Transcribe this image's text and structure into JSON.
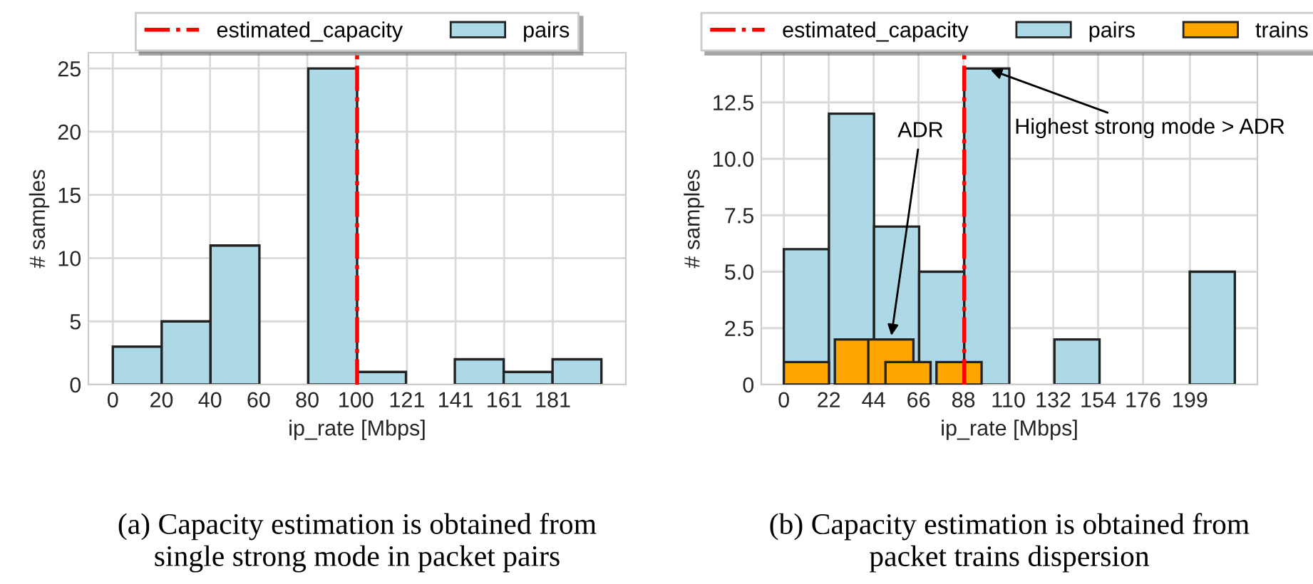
{
  "chart_data": [
    {
      "type": "histogram",
      "xlabel": "ip_rate [Mbps]",
      "ylabel": "# samples",
      "bins": [
        0,
        20.1,
        40.2,
        60.3,
        80.4,
        100.5,
        120.6,
        140.7,
        160.8,
        180.9,
        201
      ],
      "series": [
        {
          "name": "pairs",
          "color": "#add8e6",
          "values": [
            3,
            5,
            11,
            0,
            25,
            1,
            0,
            2,
            1,
            2
          ]
        }
      ],
      "ref_lines": [
        {
          "axis": "x",
          "value": 100.5,
          "label": "estimated_capacity",
          "color": "#ff0000",
          "line_style": "dashdot"
        }
      ],
      "xlim": [
        -10.05,
        211.05
      ],
      "ylim": [
        0,
        26.25
      ],
      "xticks": [
        0,
        20,
        40,
        60,
        80,
        100,
        121,
        141,
        161,
        181
      ],
      "yticks": [
        0,
        5,
        10,
        15,
        20,
        25
      ],
      "annotations": [
        "(a) Capacity estimation is obtained from\nsingle strong mode in packet pairs"
      ],
      "grid": true,
      "legend": "top"
    },
    {
      "type": "histogram",
      "xlabel": "ip_rate [Mbps]",
      "ylabel": "# samples",
      "bins": [
        0,
        22.1,
        44.2,
        66.3,
        88.4,
        110.5,
        132.6,
        154.7,
        176.8,
        198.9,
        221
      ],
      "series": [
        {
          "name": "pairs",
          "color": "#add8e6",
          "values": [
            6,
            12,
            7,
            5,
            14,
            0,
            2,
            0,
            0,
            5
          ]
        },
        {
          "name": "trains",
          "type": "bar",
          "color": "#ffa500",
          "x": [
            11.05,
            36.05,
            52.45,
            60.85,
            85.85
          ],
          "values": [
            1,
            2,
            2,
            1,
            1
          ]
        }
      ],
      "ref_lines": [
        {
          "axis": "x",
          "value": 88.4,
          "label": "estimated_capacity",
          "color": "#ff0000",
          "line_style": "dashdot"
        }
      ],
      "xlim": [
        -11.05,
        232.05
      ],
      "ylim": [
        0,
        14.7
      ],
      "xticks": [
        0,
        22,
        44,
        66,
        88,
        110,
        132,
        154,
        176,
        199
      ],
      "yticks": [
        0,
        {
          "value": 2.5,
          "label": "2.5"
        },
        {
          "value": 5,
          "label": "5.0"
        },
        {
          "value": 7.5,
          "label": "7.5"
        },
        {
          "value": 10,
          "label": "10.0"
        },
        {
          "value": 12.5,
          "label": "12.5"
        }
      ],
      "annotations": [
        {
          "text": "ADR",
          "x": 52.45,
          "y": 2
        },
        {
          "text": "Highest strong mode > ADR",
          "x": 99.45,
          "y": 14
        },
        "(b) Capacity estimation is obtained from\npacket trains dispersion"
      ],
      "grid": true,
      "legend": "top"
    }
  ]
}
